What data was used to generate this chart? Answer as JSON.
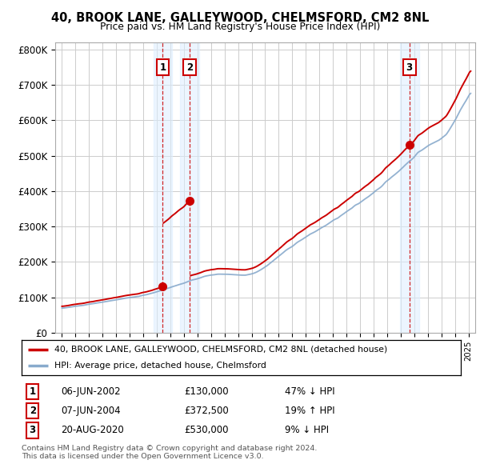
{
  "title1": "40, BROOK LANE, GALLEYWOOD, CHELMSFORD, CM2 8NL",
  "title2": "Price paid vs. HM Land Registry's House Price Index (HPI)",
  "ylabel_ticks": [
    "£0",
    "£100K",
    "£200K",
    "£300K",
    "£400K",
    "£500K",
    "£600K",
    "£700K",
    "£800K"
  ],
  "ytick_values": [
    0,
    100000,
    200000,
    300000,
    400000,
    500000,
    600000,
    700000,
    800000
  ],
  "ylim": [
    0,
    820000
  ],
  "xlim_start": 1994.5,
  "xlim_end": 2025.5,
  "sale_dates": [
    2002.44,
    2004.44,
    2020.64
  ],
  "sale_prices": [
    130000,
    372500,
    530000
  ],
  "sale_labels": [
    "1",
    "2",
    "3"
  ],
  "legend_line1": "40, BROOK LANE, GALLEYWOOD, CHELMSFORD, CM2 8NL (detached house)",
  "legend_line2": "HPI: Average price, detached house, Chelmsford",
  "table_rows": [
    [
      "1",
      "06-JUN-2002",
      "£130,000",
      "47% ↓ HPI"
    ],
    [
      "2",
      "07-JUN-2004",
      "£372,500",
      "19% ↑ HPI"
    ],
    [
      "3",
      "20-AUG-2020",
      "£530,000",
      "9% ↓ HPI"
    ]
  ],
  "footnote1": "Contains HM Land Registry data © Crown copyright and database right 2024.",
  "footnote2": "This data is licensed under the Open Government Licence v3.0.",
  "red_color": "#cc0000",
  "blue_color": "#88aacc",
  "bg_color": "#ffffff",
  "grid_color": "#cccccc",
  "shade_color": "#ddeeff"
}
